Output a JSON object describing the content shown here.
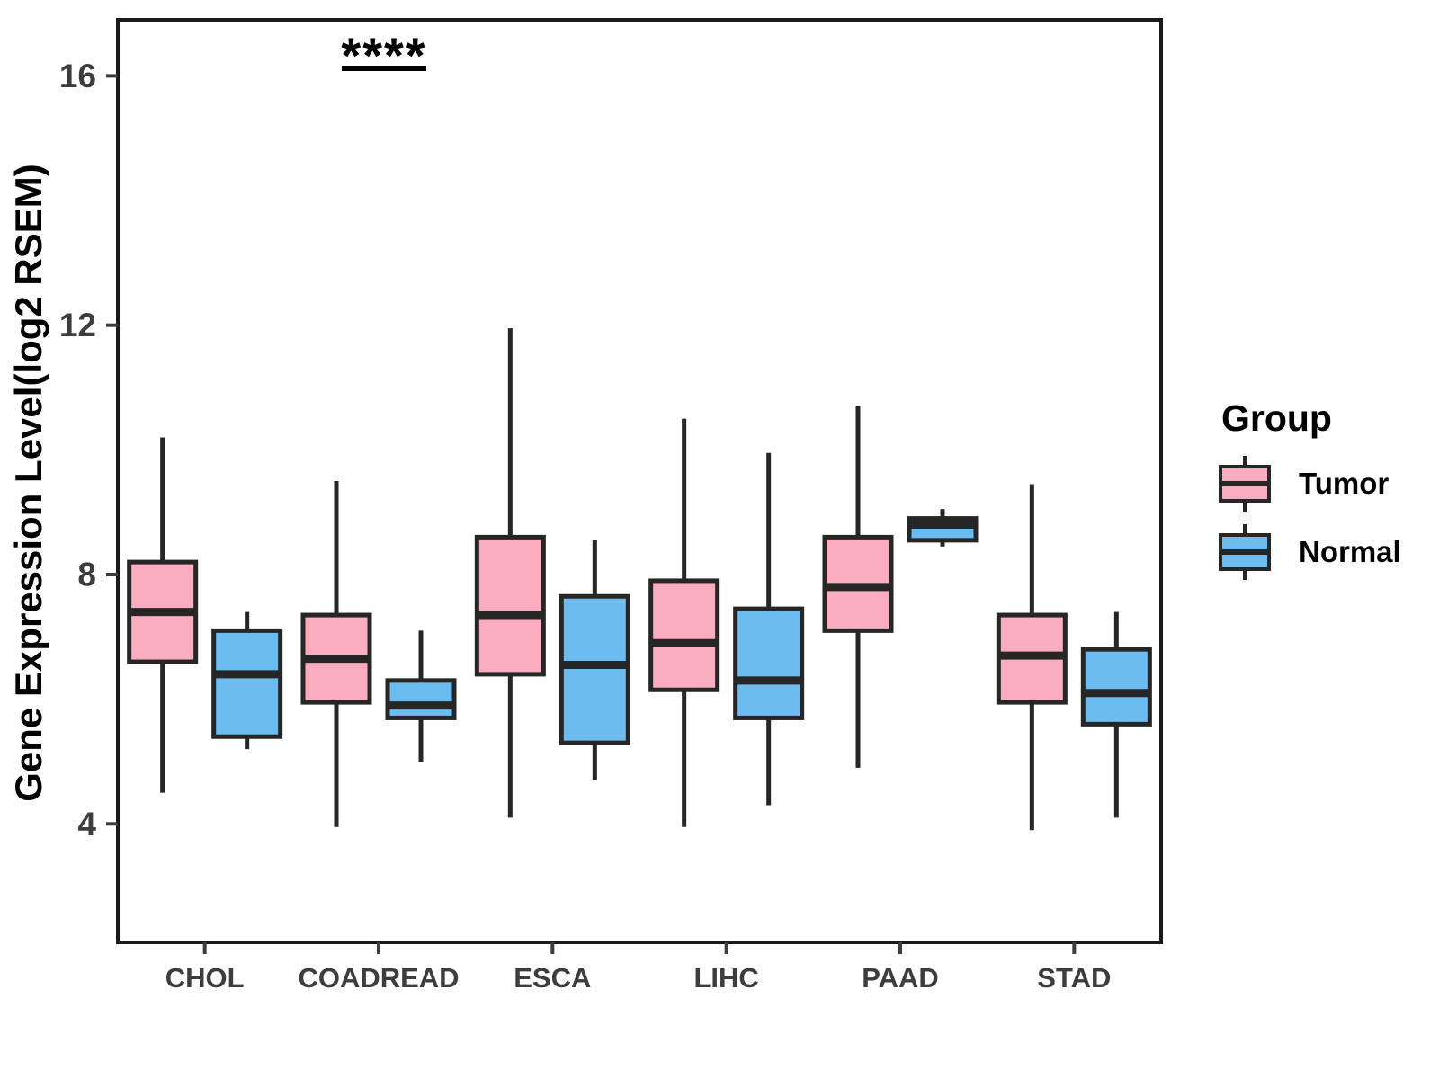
{
  "chart_data": {
    "type": "boxplot",
    "title": "",
    "xlabel": "",
    "ylabel": "Gene Expression Level(log2 RSEM)",
    "categories": [
      "CHOL",
      "COADREAD",
      "ESCA",
      "LIHC",
      "PAAD",
      "STAD"
    ],
    "y_ticks": [
      4,
      8,
      12,
      16
    ],
    "ylim": [
      2.1,
      16.9
    ],
    "grid": false,
    "legend": {
      "title": "Group",
      "position": "right"
    },
    "series": [
      {
        "name": "Tumor",
        "color": "#FAACC0",
        "boxes": [
          {
            "category": "CHOL",
            "whisker_low": 4.5,
            "q1": 6.6,
            "median": 7.4,
            "q3": 8.2,
            "whisker_high": 10.2
          },
          {
            "category": "COADREAD",
            "whisker_low": 3.95,
            "q1": 5.95,
            "median": 6.65,
            "q3": 7.35,
            "whisker_high": 9.5
          },
          {
            "category": "ESCA",
            "whisker_low": 4.1,
            "q1": 6.4,
            "median": 7.35,
            "q3": 8.6,
            "whisker_high": 11.95
          },
          {
            "category": "LIHC",
            "whisker_low": 3.95,
            "q1": 6.15,
            "median": 6.9,
            "q3": 7.9,
            "whisker_high": 10.5
          },
          {
            "category": "PAAD",
            "whisker_low": 4.9,
            "q1": 7.1,
            "median": 7.8,
            "q3": 8.6,
            "whisker_high": 10.7
          },
          {
            "category": "STAD",
            "whisker_low": 3.9,
            "q1": 5.95,
            "median": 6.7,
            "q3": 7.35,
            "whisker_high": 9.45
          }
        ]
      },
      {
        "name": "Normal",
        "color": "#6DBCF0",
        "boxes": [
          {
            "category": "CHOL",
            "whisker_low": 5.2,
            "q1": 5.4,
            "median": 6.4,
            "q3": 7.1,
            "whisker_high": 7.4
          },
          {
            "category": "COADREAD",
            "whisker_low": 5.0,
            "q1": 5.7,
            "median": 5.9,
            "q3": 6.3,
            "whisker_high": 7.1
          },
          {
            "category": "ESCA",
            "whisker_low": 4.7,
            "q1": 5.3,
            "median": 6.55,
            "q3": 7.65,
            "whisker_high": 8.55
          },
          {
            "category": "LIHC",
            "whisker_low": 4.3,
            "q1": 5.7,
            "median": 6.3,
            "q3": 7.45,
            "whisker_high": 9.95
          },
          {
            "category": "PAAD",
            "whisker_low": 8.45,
            "q1": 8.55,
            "median": 8.8,
            "q3": 8.9,
            "whisker_high": 9.05
          },
          {
            "category": "STAD",
            "whisker_low": 4.1,
            "q1": 5.6,
            "median": 6.1,
            "q3": 6.8,
            "whisker_high": 7.4
          }
        ]
      }
    ],
    "annotations": [
      {
        "category": "COADREAD",
        "label": "****",
        "type": "significance-bar"
      }
    ],
    "colors": {
      "box_stroke": "#262626",
      "panel_border": "#1A1A1A",
      "tick_label": "#3D3D3D",
      "axis_title": "#000000",
      "annotation": "#000000"
    }
  }
}
